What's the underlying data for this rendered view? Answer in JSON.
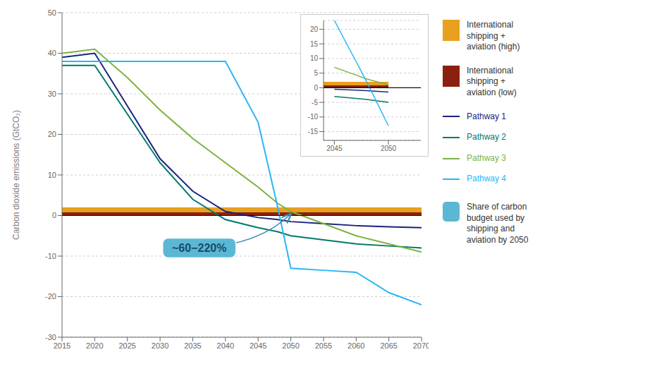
{
  "chart_data": [
    {
      "type": "line",
      "y_label": "Carbon dioxide emissions  (GtCO₂)",
      "x": [
        2015,
        2020,
        2025,
        2030,
        2035,
        2040,
        2045,
        2048,
        2050,
        2055,
        2060,
        2065,
        2070
      ],
      "xlim": [
        2015,
        2070
      ],
      "ylim": [
        -30,
        50
      ],
      "xticks": [
        2015,
        2020,
        2025,
        2030,
        2035,
        2040,
        2045,
        2050,
        2055,
        2060,
        2065,
        2070
      ],
      "yticks": [
        -30,
        -20,
        -10,
        0,
        10,
        20,
        30,
        40,
        50
      ],
      "grid": true,
      "legend": "right",
      "series": [
        {
          "name": "International\nshipping +\naviation (high)",
          "type": "area",
          "color": "#e8a020",
          "x": [
            2015,
            2070
          ],
          "values": [
            2.0,
            2.0
          ]
        },
        {
          "name": "International\nshipping +\naviation (low)",
          "type": "area",
          "color": "#8b2010",
          "x": [
            2015,
            2070
          ],
          "values": [
            0.8,
            0.8
          ]
        },
        {
          "name": "Pathway 1",
          "type": "line",
          "color": "#1a237e",
          "values": [
            39,
            40,
            27,
            14,
            6,
            1,
            -0.5,
            -1.0,
            -1.5,
            -2.0,
            -2.5,
            -2.8,
            -3.0
          ]
        },
        {
          "name": "Pathway 2",
          "type": "line",
          "color": "#00796b",
          "values": [
            37,
            37,
            25,
            13,
            4,
            -1,
            -3,
            -4,
            -5,
            -6,
            -7,
            -7.5,
            -8
          ]
        },
        {
          "name": "Pathway 3",
          "type": "line",
          "color": "#7cb342",
          "values": [
            40,
            41,
            34,
            26,
            19,
            13,
            7,
            3,
            1,
            -2,
            -5,
            -7,
            -9
          ]
        },
        {
          "name": "Pathway 4",
          "type": "line",
          "color": "#29b6f6",
          "values": [
            38,
            38,
            38,
            38,
            38,
            38,
            23,
            2,
            -13,
            -13.5,
            -14,
            -19,
            -22
          ]
        }
      ],
      "annotations": [
        {
          "text": "~60−220%",
          "x": 2050,
          "y": 0.4,
          "text_x": 2036,
          "text_y": -8,
          "color": "#1a4a6a",
          "background": "#5bb8d4"
        },
        {
          "text": "Share of carbon\nbudget used by\nshipping and\naviation by 2050",
          "color": "#5bb8d4"
        }
      ]
    },
    {
      "type": "line",
      "x": [
        2045,
        2048,
        2050
      ],
      "xlim": [
        2044,
        2053
      ],
      "ylim": [
        -18,
        23
      ],
      "xticks": [
        2045,
        2050
      ],
      "yticks": [
        -15,
        -10,
        -5,
        0,
        5,
        10,
        15,
        20
      ],
      "grid": true,
      "series": [
        {
          "name": "International\nshipping +\naviation (high)",
          "type": "area",
          "color": "#e8a020",
          "x": [
            2044,
            2050
          ],
          "values": [
            2.0,
            2.0
          ]
        },
        {
          "name": "International\nshipping +\naviation (low)",
          "type": "area",
          "color": "#8b2010",
          "x": [
            2044,
            2050
          ],
          "values": [
            0.8,
            0.8
          ]
        },
        {
          "name": "Pathway 1",
          "type": "line",
          "color": "#1a237e",
          "values": [
            -0.5,
            -1.0,
            -1.5
          ]
        },
        {
          "name": "Pathway 2",
          "type": "line",
          "color": "#00796b",
          "values": [
            -3,
            -4,
            -5
          ]
        },
        {
          "name": "Pathway 3",
          "type": "line",
          "color": "#7cb342",
          "values": [
            7,
            3,
            1
          ]
        },
        {
          "name": "Pathway 4",
          "type": "line",
          "color": "#29b6f6",
          "values": [
            23,
            2,
            -13
          ]
        }
      ]
    }
  ]
}
